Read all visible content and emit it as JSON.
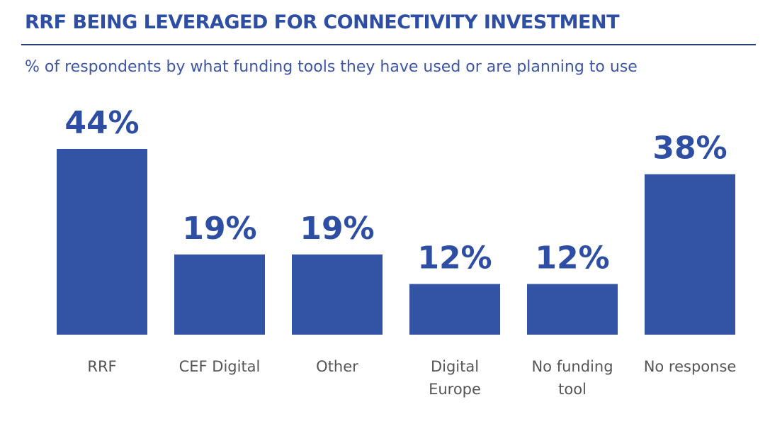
{
  "header": {
    "title": "RRF BEING LEVERAGED FOR CONNECTIVITY INVESTMENT",
    "subtitle": "% of respondents by what funding tools they have used or are planning to use"
  },
  "colors": {
    "bar": "#3353a5",
    "title": "#2e4ea3",
    "rule": "#2a3f78",
    "category_text": "#555555"
  },
  "chart_data": {
    "type": "bar",
    "title": "RRF BEING LEVERAGED FOR CONNECTIVITY INVESTMENT",
    "subtitle": "% of respondents by what funding tools they have used or are planning to use",
    "categories": [
      "RRF",
      "CEF Digital",
      "Other",
      "Digital Europe",
      "No funding tool",
      "No response"
    ],
    "category_lines": [
      [
        "RRF"
      ],
      [
        "CEF Digital"
      ],
      [
        "Other"
      ],
      [
        "Digital",
        "Europe"
      ],
      [
        "No funding",
        "tool"
      ],
      [
        "No response"
      ]
    ],
    "values": [
      44,
      19,
      19,
      12,
      12,
      38
    ],
    "value_labels": [
      "44%",
      "19%",
      "19%",
      "12%",
      "12%",
      "38%"
    ],
    "unit": "%",
    "xlabel": "",
    "ylabel": "",
    "ylim": [
      0,
      44
    ],
    "grid": false,
    "legend": "none"
  }
}
